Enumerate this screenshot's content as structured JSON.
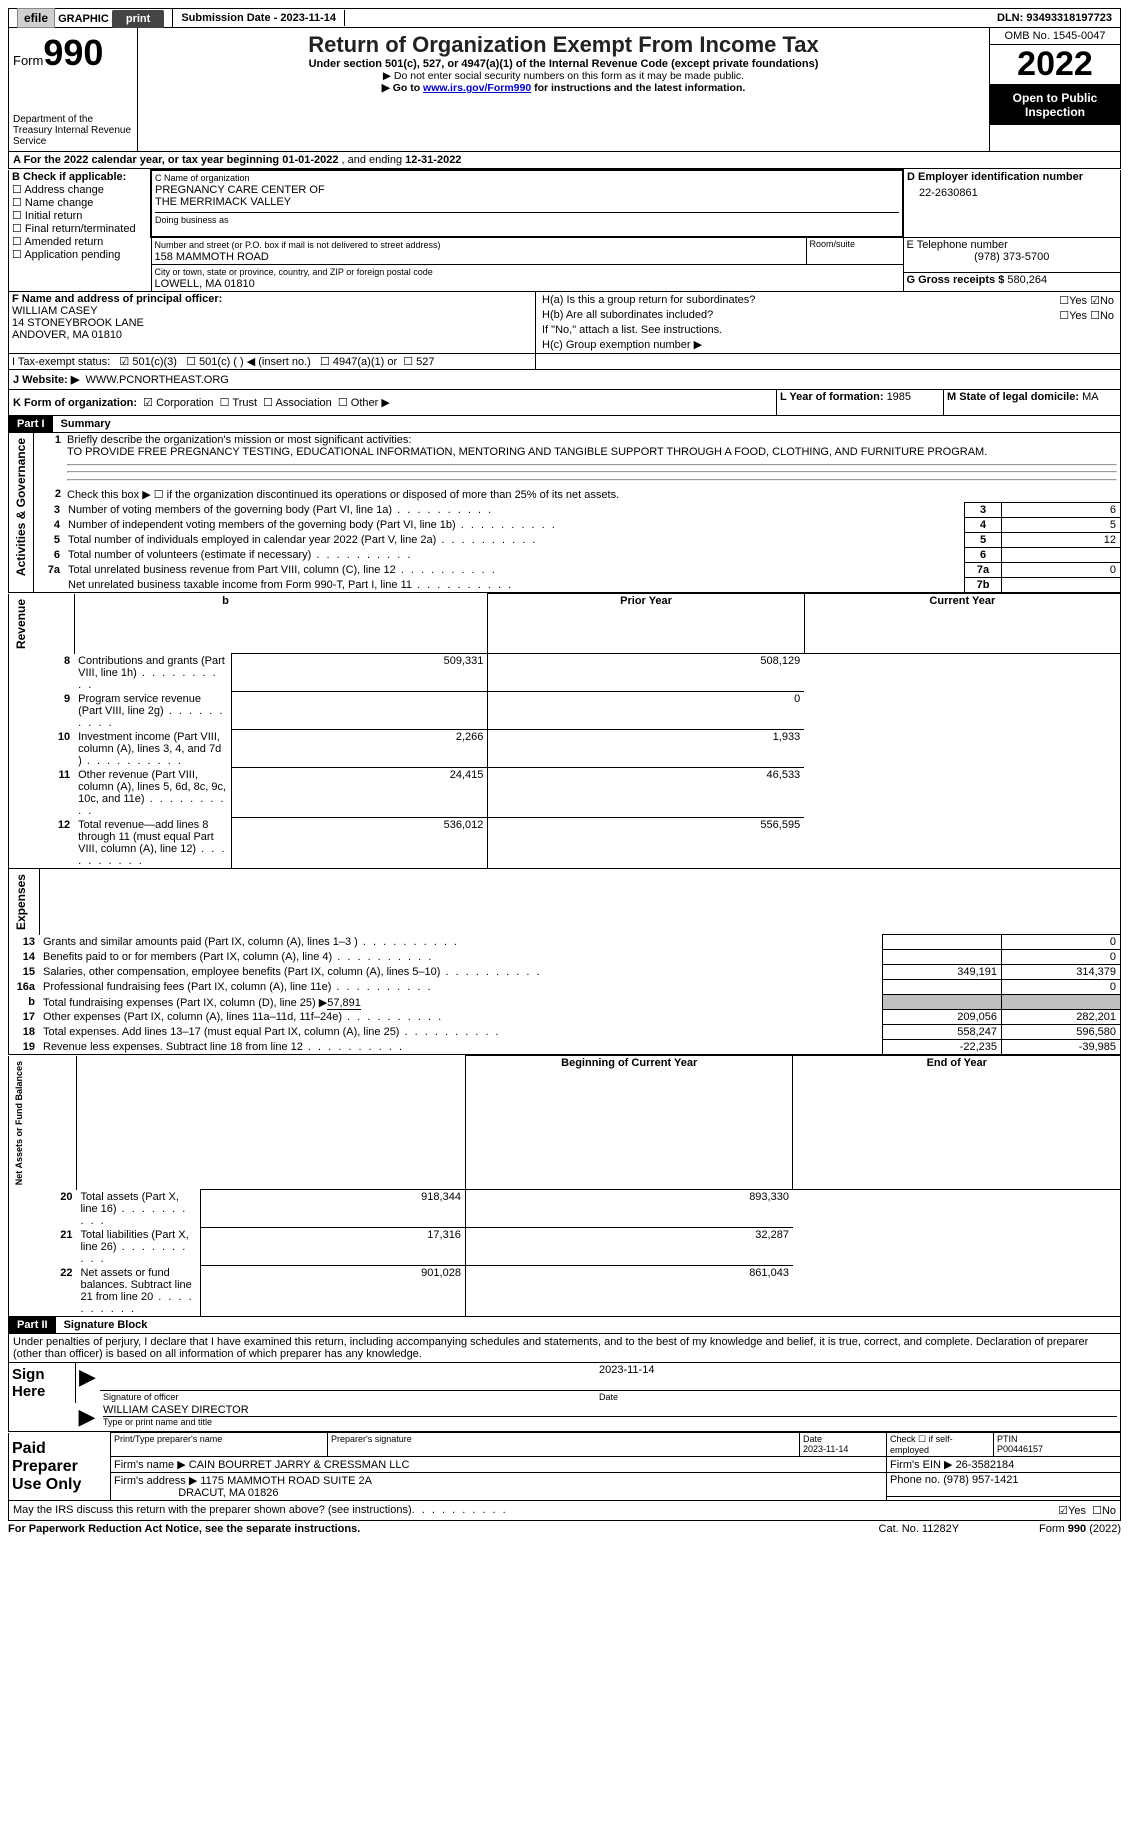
{
  "top": {
    "efile": "efile GRAPHIC print",
    "submission_label": "Submission Date - ",
    "submission_date": "2023-11-14",
    "dln_label": "DLN: ",
    "dln": "93493318197723"
  },
  "header": {
    "form_word": "Form",
    "form_num": "990",
    "dept": "Department of the Treasury Internal Revenue Service",
    "title": "Return of Organization Exempt From Income Tax",
    "subtitle": "Under section 501(c), 527, or 4947(a)(1) of the Internal Revenue Code (except private foundations)",
    "instr1": "▶ Do not enter social security numbers on this form as it may be made public.",
    "instr2_pre": "▶ Go to ",
    "instr2_link": "www.irs.gov/Form990",
    "instr2_post": " for instructions and the latest information.",
    "omb": "OMB No. 1545-0047",
    "year": "2022",
    "open": "Open to Public Inspection"
  },
  "secA": {
    "a_line_pre": "A For the 2022 calendar year, or tax year beginning ",
    "begin": "01-01-2022",
    "mid": "  , and ending ",
    "end": "12-31-2022",
    "b_label": "B Check if applicable:",
    "b_opts": [
      "Address change",
      "Name change",
      "Initial return",
      "Final return/terminated",
      "Amended return",
      "Application pending"
    ],
    "c_label": "C Name of organization",
    "org1": "PREGNANCY CARE CENTER OF",
    "org2": "THE MERRIMACK VALLEY",
    "dba_label": "Doing business as",
    "street_label": "Number and street (or P.O. box if mail is not delivered to street address)",
    "room_label": "Room/suite",
    "street": "158 MAMMOTH ROAD",
    "city_label": "City or town, state or province, country, and ZIP or foreign postal code",
    "city": "LOWELL, MA  01810",
    "d_label": "D Employer identification number",
    "ein": "22-2630861",
    "e_label": "E Telephone number",
    "phone": "(978) 373-5700",
    "g_label": "G Gross receipts $ ",
    "gross": "580,264",
    "f_label": "F  Name and address of principal officer:",
    "f_name": "WILLIAM CASEY",
    "f_addr1": "14 STONEYBROOK LANE",
    "f_addr2": "ANDOVER, MA  01810",
    "h_a": "H(a)  Is this a group return for subordinates?",
    "h_b": "H(b)  Are all subordinates included?",
    "h_note": "If \"No,\" attach a list. See instructions.",
    "h_c": "H(c)  Group exemption number ▶",
    "yes": "Yes",
    "no": "No",
    "i_label": "I   Tax-exempt status:",
    "i_501c3": "501(c)(3)",
    "i_501c": "501(c) (  ) ◀ (insert no.)",
    "i_4947": "4947(a)(1) or",
    "i_527": "527",
    "j_label": "J   Website: ▶",
    "website": "WWW.PCNORTHEAST.ORG",
    "k_label": "K Form of organization:",
    "k_opts": [
      "Corporation",
      "Trust",
      "Association",
      "Other ▶"
    ],
    "l_label": "L Year of formation: ",
    "l_val": "1985",
    "m_label": "M State of legal domicile: ",
    "m_val": "MA"
  },
  "part1": {
    "tag": "Part I",
    "title": "Summary",
    "line1": "Briefly describe the organization's mission or most significant activities:",
    "mission": "TO PROVIDE FREE PREGNANCY TESTING, EDUCATIONAL INFORMATION, MENTORING AND TANGIBLE SUPPORT THROUGH A FOOD, CLOTHING, AND FURNITURE PROGRAM.",
    "line2": "Check this box ▶ ☐  if the organization discontinued its operations or disposed of more than 25% of its net assets.",
    "vlabel_ag": "Activities & Governance",
    "vlabel_rev": "Revenue",
    "vlabel_exp": "Expenses",
    "vlabel_na": "Net Assets or Fund Balances",
    "lines_ag": [
      {
        "n": "3",
        "t": "Number of voting members of the governing body (Part VI, line 1a)",
        "b": "3",
        "v": "6"
      },
      {
        "n": "4",
        "t": "Number of independent voting members of the governing body (Part VI, line 1b)",
        "b": "4",
        "v": "5"
      },
      {
        "n": "5",
        "t": "Total number of individuals employed in calendar year 2022 (Part V, line 2a)",
        "b": "5",
        "v": "12"
      },
      {
        "n": "6",
        "t": "Total number of volunteers (estimate if necessary)",
        "b": "6",
        "v": ""
      },
      {
        "n": "7a",
        "t": "Total unrelated business revenue from Part VIII, column (C), line 12",
        "b": "7a",
        "v": "0"
      },
      {
        "n": "",
        "t": "Net unrelated business taxable income from Form 990-T, Part I, line 11",
        "b": "7b",
        "v": ""
      }
    ],
    "hdr_prior": "Prior Year",
    "hdr_curr": "Current Year",
    "lines_rev": [
      {
        "n": "8",
        "t": "Contributions and grants (Part VIII, line 1h)",
        "p": "509,331",
        "c": "508,129"
      },
      {
        "n": "9",
        "t": "Program service revenue (Part VIII, line 2g)",
        "p": "",
        "c": "0"
      },
      {
        "n": "10",
        "t": "Investment income (Part VIII, column (A), lines 3, 4, and 7d )",
        "p": "2,266",
        "c": "1,933"
      },
      {
        "n": "11",
        "t": "Other revenue (Part VIII, column (A), lines 5, 6d, 8c, 9c, 10c, and 11e)",
        "p": "24,415",
        "c": "46,533"
      },
      {
        "n": "12",
        "t": "Total revenue—add lines 8 through 11 (must equal Part VIII, column (A), line 12)",
        "p": "536,012",
        "c": "556,595"
      }
    ],
    "lines_exp": [
      {
        "n": "13",
        "t": "Grants and similar amounts paid (Part IX, column (A), lines 1–3 )",
        "p": "",
        "c": "0"
      },
      {
        "n": "14",
        "t": "Benefits paid to or for members (Part IX, column (A), line 4)",
        "p": "",
        "c": "0"
      },
      {
        "n": "15",
        "t": "Salaries, other compensation, employee benefits (Part IX, column (A), lines 5–10)",
        "p": "349,191",
        "c": "314,379"
      },
      {
        "n": "16a",
        "t": "Professional fundraising fees (Part IX, column (A), line 11e)",
        "p": "",
        "c": "0"
      }
    ],
    "line16b_pre": "Total fundraising expenses (Part IX, column (D), line 25) ▶",
    "line16b_val": "57,891",
    "lines_exp2": [
      {
        "n": "17",
        "t": "Other expenses (Part IX, column (A), lines 11a–11d, 11f–24e)",
        "p": "209,056",
        "c": "282,201"
      },
      {
        "n": "18",
        "t": "Total expenses. Add lines 13–17 (must equal Part IX, column (A), line 25)",
        "p": "558,247",
        "c": "596,580"
      },
      {
        "n": "19",
        "t": "Revenue less expenses. Subtract line 18 from line 12",
        "p": "-22,235",
        "c": "-39,985"
      }
    ],
    "hdr_begin": "Beginning of Current Year",
    "hdr_end": "End of Year",
    "lines_na": [
      {
        "n": "20",
        "t": "Total assets (Part X, line 16)",
        "p": "918,344",
        "c": "893,330"
      },
      {
        "n": "21",
        "t": "Total liabilities (Part X, line 26)",
        "p": "17,316",
        "c": "32,287"
      },
      {
        "n": "22",
        "t": "Net assets or fund balances. Subtract line 21 from line 20",
        "p": "901,028",
        "c": "861,043"
      }
    ]
  },
  "part2": {
    "tag": "Part II",
    "title": "Signature Block",
    "decl": "Under penalties of perjury, I declare that I have examined this return, including accompanying schedules and statements, and to the best of my knowledge and belief, it is true, correct, and complete. Declaration of preparer (other than officer) is based on all information of which preparer has any knowledge.",
    "sign_here": "Sign Here",
    "sig_officer": "Signature of officer",
    "sig_date": "2023-11-14",
    "date_lbl": "Date",
    "officer_name": "WILLIAM CASEY  DIRECTOR",
    "type_name": "Type or print name and title",
    "paid_prep": "Paid Preparer Use Only",
    "prep_name_lbl": "Print/Type preparer's name",
    "prep_sig_lbl": "Preparer's signature",
    "prep_date_lbl": "Date",
    "prep_date": "2023-11-14",
    "check_self": "Check ☐ if self-employed",
    "ptin_lbl": "PTIN",
    "ptin": "P00446157",
    "firm_name_lbl": "Firm's name     ▶",
    "firm_name": "CAIN BOURRET JARRY & CRESSMAN LLC",
    "firm_ein_lbl": "Firm's EIN ▶",
    "firm_ein": "26-3582184",
    "firm_addr_lbl": "Firm's address ▶",
    "firm_addr1": "1175 MAMMOTH ROAD SUITE 2A",
    "firm_addr2": "DRACUT, MA  01826",
    "firm_phone_lbl": "Phone no. ",
    "firm_phone": "(978) 957-1421",
    "may_irs": "May the IRS discuss this return with the preparer shown above? (see instructions)"
  },
  "footer": {
    "pra": "For Paperwork Reduction Act Notice, see the separate instructions.",
    "cat": "Cat. No. 11282Y",
    "form": "Form 990 (2022)"
  }
}
